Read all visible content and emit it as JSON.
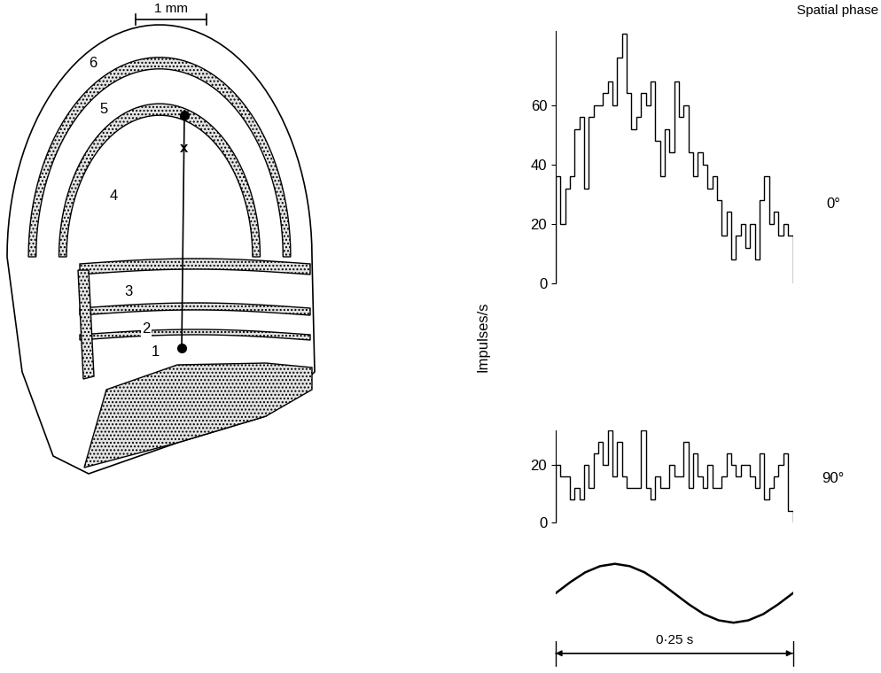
{
  "diagram": {
    "scale_bar": "1 mm",
    "layers": [
      "1",
      "2",
      "3",
      "4",
      "5",
      "6"
    ],
    "recording_site": "x"
  },
  "header": "Spatial phase",
  "y_label": "Impulses/s",
  "chart_data": [
    {
      "type": "histogram",
      "annotation": "0°",
      "color": "#000000",
      "bins": [
        0,
        0.005,
        0.01,
        0.015,
        0.02,
        0.025,
        0.03,
        0.035,
        0.04,
        0.045,
        0.05,
        0.055,
        0.06,
        0.065,
        0.07,
        0.075,
        0.08,
        0.085,
        0.09,
        0.095,
        0.1,
        0.105,
        0.11,
        0.115,
        0.12,
        0.125,
        0.13,
        0.135,
        0.14,
        0.145,
        0.15,
        0.155,
        0.16,
        0.165,
        0.17,
        0.175,
        0.18,
        0.185,
        0.19,
        0.195,
        0.2,
        0.205,
        0.21,
        0.215,
        0.22,
        0.225,
        0.23,
        0.235,
        0.24,
        0.245,
        0.25
      ],
      "values": [
        36,
        20,
        32,
        36,
        52,
        56,
        32,
        56,
        60,
        60,
        64,
        68,
        60,
        76,
        84,
        64,
        52,
        56,
        64,
        60,
        68,
        48,
        36,
        52,
        44,
        68,
        56,
        60,
        44,
        36,
        44,
        40,
        32,
        36,
        28,
        16,
        24,
        8,
        16,
        20,
        12,
        20,
        8,
        28,
        36,
        20,
        24,
        16,
        20,
        16
      ],
      "ylim": [
        0,
        85
      ],
      "yticks": [
        0,
        20,
        40,
        60
      ],
      "tick_labels": "y"
    },
    {
      "type": "histogram",
      "annotation": "90°",
      "color": "#000000",
      "bins": [
        0,
        0.005,
        0.01,
        0.015,
        0.02,
        0.025,
        0.03,
        0.035,
        0.04,
        0.045,
        0.05,
        0.055,
        0.06,
        0.065,
        0.07,
        0.075,
        0.08,
        0.085,
        0.09,
        0.095,
        0.1,
        0.105,
        0.11,
        0.115,
        0.12,
        0.125,
        0.13,
        0.135,
        0.14,
        0.145,
        0.15,
        0.155,
        0.16,
        0.165,
        0.17,
        0.175,
        0.18,
        0.185,
        0.19,
        0.195,
        0.2,
        0.205,
        0.21,
        0.215,
        0.22,
        0.225,
        0.23,
        0.235,
        0.24,
        0.245,
        0.25
      ],
      "values": [
        20,
        16,
        16,
        8,
        12,
        8,
        20,
        12,
        24,
        28,
        20,
        32,
        16,
        28,
        16,
        12,
        12,
        12,
        32,
        12,
        8,
        16,
        12,
        12,
        20,
        16,
        16,
        28,
        12,
        24,
        16,
        12,
        20,
        12,
        12,
        16,
        24,
        20,
        16,
        20,
        20,
        16,
        12,
        24,
        8,
        12,
        16,
        20,
        24,
        4
      ],
      "ylim": [
        0,
        32
      ],
      "yticks": [
        0,
        20
      ],
      "tick_labels": "y"
    },
    {
      "type": "line",
      "color": "#000000",
      "tick_labels": false,
      "x": [
        0,
        0.015625,
        0.03125,
        0.046875,
        0.0625,
        0.078125,
        0.09375,
        0.109375,
        0.125,
        0.140625,
        0.15625,
        0.171875,
        0.1875,
        0.203125,
        0.21875,
        0.234375,
        0.25
      ],
      "values": [
        0,
        0.38,
        0.71,
        0.92,
        1,
        0.92,
        0.71,
        0.38,
        0,
        -0.38,
        -0.71,
        -0.92,
        -1,
        -0.92,
        -0.71,
        -0.38,
        0
      ],
      "xlim": [
        0,
        0.25
      ],
      "ylim": [
        -1.2,
        1.2
      ],
      "time_bar": {
        "value": 0.25,
        "label": "0·25 s"
      }
    }
  ]
}
